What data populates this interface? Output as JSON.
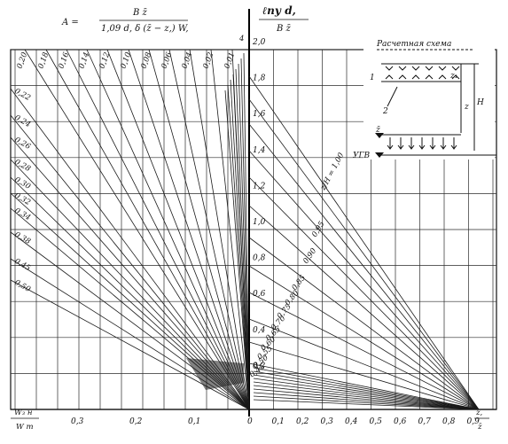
{
  "header": {
    "formula_lhs": "A =",
    "formula_num": "B z̄",
    "formula_den": "1,09 d, δ (z̄ − z,) W,",
    "axis_title_num": "ℓпу d,",
    "axis_title_den": "B z̄"
  },
  "axes": {
    "x_left_label_num": "W₃ н",
    "x_left_label_den": "W т",
    "x_right_label_num": "z,",
    "x_right_label_den": "z̄",
    "x_left_ticks": [
      "0,3",
      "0,2",
      "0,1"
    ],
    "x_right_ticks": [
      "0",
      "0,1",
      "0,2",
      "0,3",
      "0,4",
      "0,5",
      "0,6",
      "0,7",
      "0,8",
      "0,9"
    ],
    "y_ticks": [
      "2,0",
      "1,8",
      "1,6",
      "1,4",
      "1,2",
      "1,0",
      "0,8",
      "0,6",
      "0,4",
      "0,2"
    ],
    "y_top_small": "4"
  },
  "left_rays": {
    "top_labels": [
      "0,20",
      "0,18",
      "0,16",
      "0,14",
      "0,12",
      "0,10",
      "0,08",
      "0,06",
      "0,04",
      "0,02",
      "0,01"
    ],
    "side_labels": [
      "0,22",
      "0,24",
      "0,26",
      "0,28",
      "0,30",
      "0,32",
      "0,34",
      "0,38",
      "0,45",
      "0,50"
    ]
  },
  "right_curves": {
    "labels": [
      "z/H = 1,00",
      "0,95",
      "0,90",
      "0,85",
      "0,80",
      "0,75",
      "0,70",
      "0,65",
      "0,60",
      "0,55",
      "0,50",
      "0,45"
    ]
  },
  "scheme": {
    "title": "Расчетная схема",
    "label_1": "1",
    "label_2": "2",
    "label_z1": "z₁",
    "label_z": "z",
    "label_H": "H",
    "label_zbar": "z̄",
    "label_ugv": "УГВ"
  },
  "colors": {
    "ink": "#111111",
    "paper": "#ffffff"
  }
}
